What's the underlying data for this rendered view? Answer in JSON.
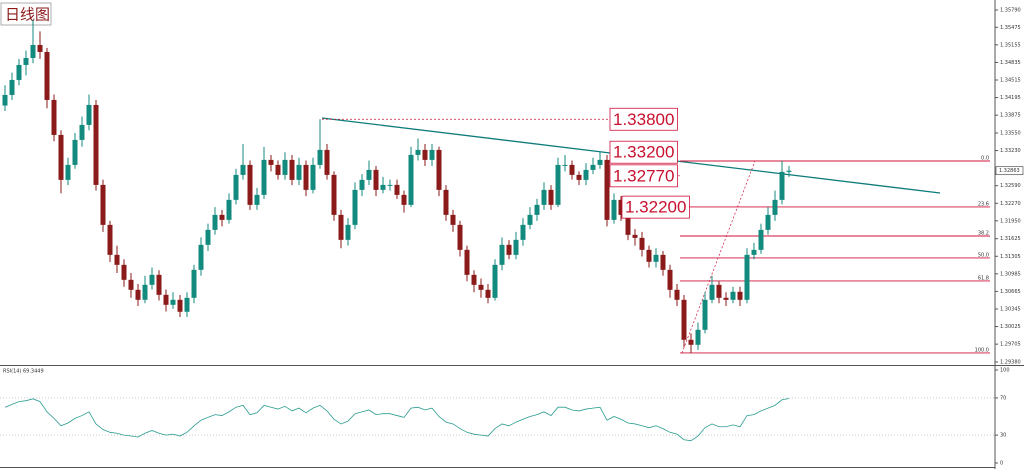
{
  "chart_data": {
    "type": "candlestick",
    "title": "日线图",
    "up_color": "#138a7e",
    "down_color": "#8b1a1a",
    "ylim": [
      1.29325,
      1.35972
    ],
    "yticks": [
      {
        "value": 1.3579,
        "label": "1.35790"
      },
      1.35475,
      1.35155,
      1.34835,
      1.34515,
      1.34195,
      1.33875,
      {
        "value": 1.3355,
        "label": "1.33550"
      },
      {
        "value": 1.3323,
        "label": "1.33230"
      },
      {
        "value": 1.3259,
        "label": "1.32590"
      },
      {
        "value": 1.3227,
        "label": "1.32270"
      },
      {
        "value": 1.3195,
        "label": "1.31950"
      },
      1.31625,
      1.31305,
      1.30985,
      1.30665,
      1.30345,
      1.30025,
      1.29705,
      {
        "value": 1.2938,
        "label": "1.29380"
      }
    ],
    "candles": {
      "open": [
        1.3405,
        1.34243,
        1.34516,
        1.34789,
        1.34916,
        1.35153,
        1.35026,
        1.34152,
        1.33515,
        1.32696,
        1.32969,
        1.33424,
        1.33697,
        1.34061,
        1.32605,
        1.31877,
        1.31331,
        1.31149,
        1.30876,
        1.30694,
        1.30512,
        1.30785,
        1.30967,
        1.30603,
        1.30421,
        1.30512,
        1.30294,
        1.30548,
        1.31058,
        1.31513,
        1.31786,
        1.32059,
        1.31968,
        1.32332,
        1.32787,
        1.32969,
        1.32241,
        1.32423,
        1.3306,
        1.32969,
        1.32787,
        1.3306,
        1.32696,
        1.32969,
        1.32514,
        1.32969,
        1.33242,
        1.32787,
        1.32059,
        1.31604,
        1.31877,
        1.32514,
        1.32696,
        1.32878,
        1.32514,
        1.32605,
        1.32605,
        1.32423,
        1.32241,
        1.33151,
        1.33242,
        1.3306,
        1.33242,
        1.32514,
        1.32059,
        1.31877,
        1.31422,
        1.30967,
        1.30785,
        1.30694,
        1.30548,
        1.31149,
        1.31513,
        1.31331,
        1.31604,
        1.31877,
        1.32059,
        1.32241,
        1.32514,
        1.32241,
        1.32969,
        1.32969,
        1.32787,
        1.32696,
        1.32878,
        1.32969,
        1.3306,
        1.31968,
        1.32332,
        1.32059,
        1.31695,
        1.3164,
        1.31422,
        1.31204,
        1.31331,
        1.31058,
        1.30694,
        1.30512,
        1.29784,
        1.29693,
        1.29966,
        1.30512,
        1.30785,
        1.30548,
        1.30512,
        1.30658,
        1.30512,
        1.31331,
        1.31422,
        1.31786,
        1.32059,
        1.32332,
        1.32842
      ],
      "high": [
        1.3442,
        1.3465,
        1.349,
        1.3505,
        1.35608,
        1.354,
        1.351,
        1.3425,
        1.336,
        1.331,
        1.3355,
        1.3385,
        1.3425,
        1.3415,
        1.327,
        1.3195,
        1.315,
        1.3125,
        1.31,
        1.308,
        1.3095,
        1.311,
        1.3105,
        1.307,
        1.3065,
        1.306,
        1.3065,
        1.3115,
        1.3165,
        1.319,
        1.322,
        1.3215,
        1.3245,
        1.329,
        1.3335,
        1.3305,
        1.3255,
        1.333,
        1.3315,
        1.3305,
        1.332,
        1.3315,
        1.331,
        1.3305,
        1.331,
        1.338,
        1.3335,
        1.3285,
        1.3215,
        1.32,
        1.3265,
        1.328,
        1.3305,
        1.3295,
        1.3275,
        1.327,
        1.327,
        1.325,
        1.333,
        1.3345,
        1.3335,
        1.3335,
        1.333,
        1.326,
        1.3215,
        1.3195,
        1.315,
        1.3105,
        1.309,
        1.308,
        1.3125,
        1.3165,
        1.316,
        1.3175,
        1.32,
        1.322,
        1.3235,
        1.3265,
        1.326,
        1.331,
        1.3315,
        1.3305,
        1.3285,
        1.33,
        1.331,
        1.332,
        1.3315,
        1.3245,
        1.324,
        1.3215,
        1.318,
        1.3175,
        1.315,
        1.3145,
        1.314,
        1.3115,
        1.308,
        1.306,
        1.299,
        1.301,
        1.3065,
        1.3095,
        1.3085,
        1.3065,
        1.3075,
        1.3075,
        1.3145,
        1.3155,
        1.319,
        1.322,
        1.325,
        1.3304,
        1.3295
      ],
      "low": [
        1.3395,
        1.3415,
        1.3442,
        1.346,
        1.3482,
        1.349,
        1.34,
        1.334,
        1.3245,
        1.326,
        1.329,
        1.333,
        1.336,
        1.325,
        1.3175,
        1.312,
        1.31,
        1.3075,
        1.3055,
        1.304,
        1.3045,
        1.307,
        1.305,
        1.303,
        1.3035,
        1.302,
        1.302,
        1.3045,
        1.3095,
        1.314,
        1.317,
        1.3185,
        1.319,
        1.3225,
        1.327,
        1.3215,
        1.3215,
        1.3235,
        1.3285,
        1.327,
        1.327,
        1.326,
        1.326,
        1.324,
        1.3245,
        1.329,
        1.327,
        1.3195,
        1.3145,
        1.315,
        1.318,
        1.324,
        1.326,
        1.324,
        1.3245,
        1.325,
        1.3235,
        1.321,
        1.322,
        1.3305,
        1.3295,
        1.3295,
        1.324,
        1.3195,
        1.3175,
        1.313,
        1.3085,
        1.3065,
        1.3055,
        1.3045,
        1.305,
        1.3105,
        1.3125,
        1.3125,
        1.315,
        1.318,
        1.3195,
        1.3215,
        1.3215,
        1.322,
        1.3285,
        1.327,
        1.326,
        1.326,
        1.328,
        1.329,
        1.3185,
        1.319,
        1.3195,
        1.316,
        1.315,
        1.313,
        1.311,
        1.311,
        1.3095,
        1.3055,
        1.304,
        1.2965,
        1.29544,
        1.296,
        1.299,
        1.3045,
        1.3045,
        1.304,
        1.3045,
        1.304,
        1.3045,
        1.3125,
        1.3135,
        1.317,
        1.3195,
        1.3225,
        1.3275
      ],
      "close": [
        1.34243,
        1.34516,
        1.34789,
        1.34916,
        1.35153,
        1.35026,
        1.34152,
        1.33515,
        1.32696,
        1.32969,
        1.33424,
        1.33697,
        1.34061,
        1.32605,
        1.31877,
        1.31331,
        1.31149,
        1.30876,
        1.30694,
        1.30512,
        1.30785,
        1.30967,
        1.30603,
        1.30421,
        1.30512,
        1.30294,
        1.30548,
        1.31058,
        1.31513,
        1.31786,
        1.32059,
        1.31968,
        1.32332,
        1.32787,
        1.32969,
        1.32241,
        1.32423,
        1.3306,
        1.32969,
        1.32787,
        1.3306,
        1.32696,
        1.32969,
        1.32514,
        1.32969,
        1.33242,
        1.32787,
        1.32059,
        1.31604,
        1.31877,
        1.32514,
        1.32696,
        1.32878,
        1.32514,
        1.32605,
        1.32605,
        1.32423,
        1.32241,
        1.33151,
        1.33242,
        1.3306,
        1.33242,
        1.32514,
        1.32059,
        1.31877,
        1.31422,
        1.30967,
        1.30785,
        1.30694,
        1.30548,
        1.31149,
        1.31513,
        1.31331,
        1.31604,
        1.31877,
        1.32059,
        1.32241,
        1.32514,
        1.32241,
        1.32969,
        1.32969,
        1.32787,
        1.32696,
        1.32878,
        1.32969,
        1.3306,
        1.31968,
        1.32332,
        1.32059,
        1.31695,
        1.3164,
        1.31422,
        1.31204,
        1.31331,
        1.31058,
        1.30694,
        1.30512,
        1.29784,
        1.29693,
        1.29966,
        1.30512,
        1.30785,
        1.30548,
        1.30512,
        1.30658,
        1.30512,
        1.31331,
        1.31422,
        1.31786,
        1.32059,
        1.32332,
        1.32842,
        1.32863
      ]
    },
    "annotations": [
      {
        "label": "1.33800",
        "value": 1.338
      },
      {
        "label": "1.33200",
        "value": 1.332
      },
      {
        "label": "1.32770",
        "value": 1.3277
      },
      {
        "label": "1.32200",
        "value": 1.322
      }
    ],
    "fib_levels": [
      {
        "label": "0.0",
        "value": 1.3304
      },
      {
        "label": "23.6",
        "value": 1.32203
      },
      {
        "label": "38.2",
        "value": 1.31674
      },
      {
        "label": "50.0",
        "value": 1.31274
      },
      {
        "label": "61.8",
        "value": 1.30855
      },
      {
        "label": "100.0",
        "value": 1.29544
      }
    ],
    "rsi": {
      "label": "RSI(14) 69.3449",
      "color": "#2a9d8f",
      "ylim": [
        0,
        100
      ],
      "yticks": [
        0,
        30,
        70,
        100
      ],
      "values": [
        60,
        63,
        66,
        67,
        69,
        66,
        55,
        48,
        40,
        43,
        48,
        51,
        55,
        42,
        36,
        33,
        32,
        30,
        29,
        28,
        32,
        35,
        32,
        30,
        31,
        29,
        33,
        40,
        46,
        49,
        52,
        51,
        55,
        60,
        62,
        52,
        54,
        62,
        60,
        58,
        61,
        56,
        59,
        54,
        59,
        62,
        56,
        47,
        42,
        45,
        53,
        55,
        57,
        52,
        53,
        53,
        51,
        49,
        59,
        60,
        57,
        59,
        50,
        44,
        42,
        37,
        33,
        31,
        30,
        29,
        37,
        42,
        40,
        44,
        47,
        50,
        52,
        55,
        51,
        60,
        60,
        57,
        56,
        58,
        59,
        60,
        46,
        50,
        47,
        43,
        42,
        40,
        38,
        40,
        37,
        33,
        31,
        25,
        24,
        29,
        38,
        42,
        39,
        39,
        41,
        39,
        51,
        52,
        56,
        59,
        62,
        68,
        69.3449
      ]
    }
  }
}
